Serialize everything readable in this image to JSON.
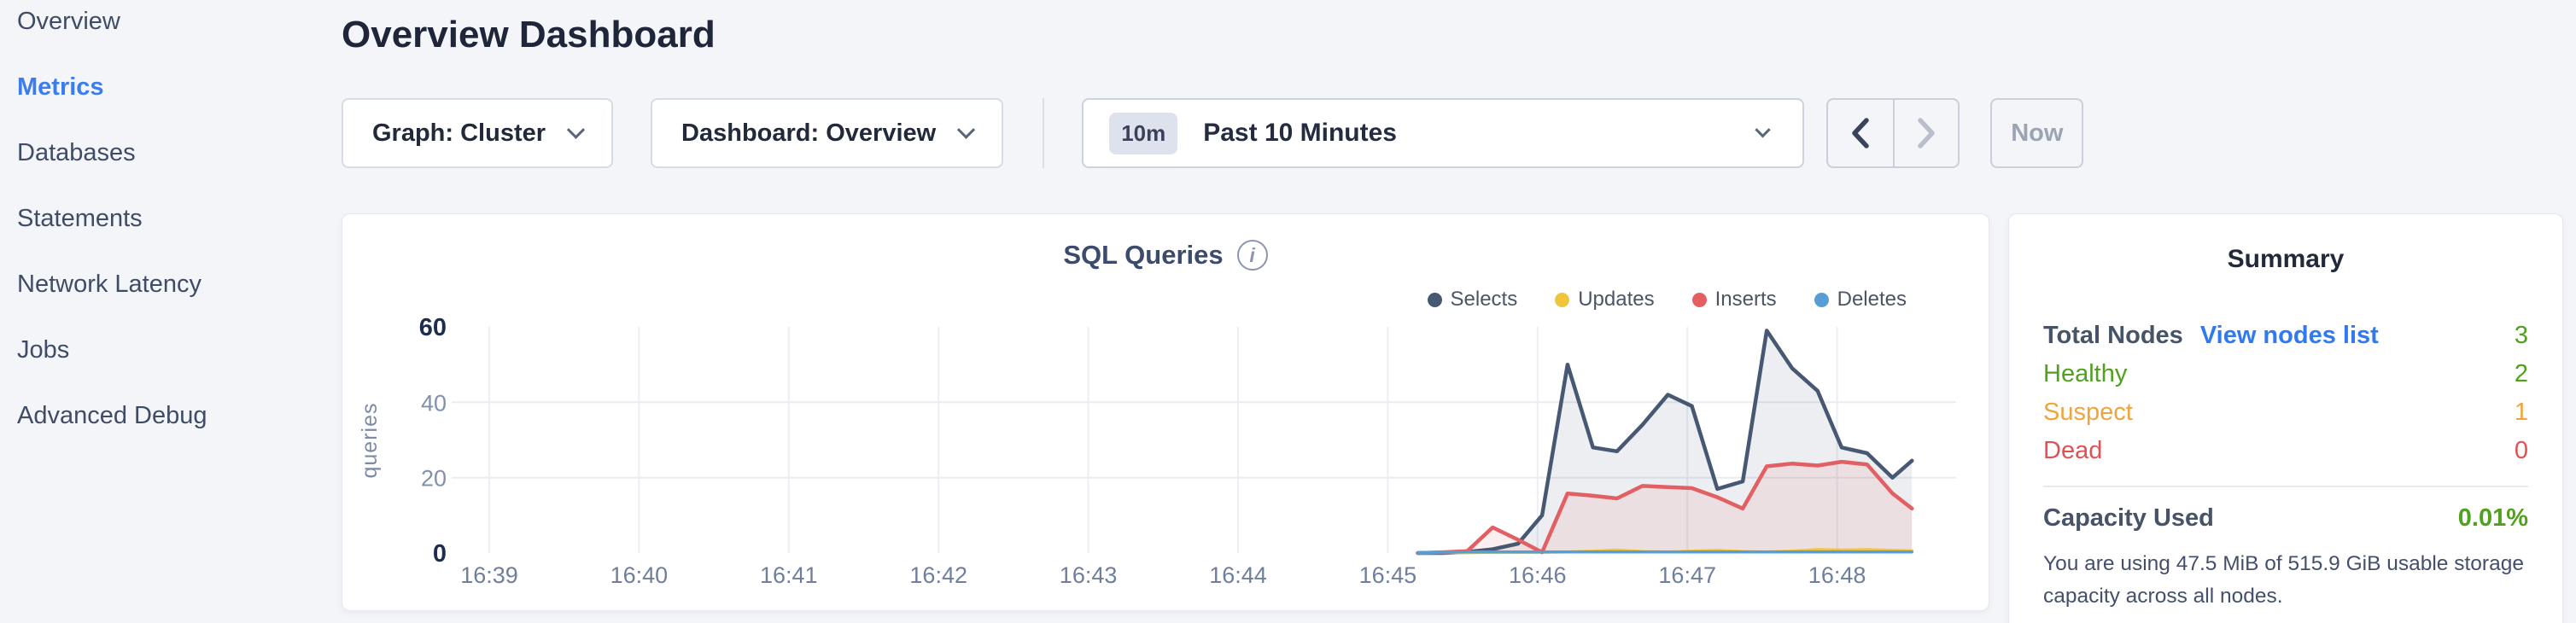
{
  "sidebar": {
    "items": [
      {
        "label": "Overview",
        "active": false
      },
      {
        "label": "Metrics",
        "active": true
      },
      {
        "label": "Databases",
        "active": false
      },
      {
        "label": "Statements",
        "active": false
      },
      {
        "label": "Network Latency",
        "active": false
      },
      {
        "label": "Jobs",
        "active": false
      },
      {
        "label": "Advanced Debug",
        "active": false
      }
    ]
  },
  "header": {
    "title": "Overview Dashboard"
  },
  "controls": {
    "graph_dropdown_label": "Graph: Cluster",
    "dashboard_dropdown_label": "Dashboard: Overview",
    "time_window_badge": "10m",
    "time_window_label": "Past 10 Minutes",
    "now_button_label": "Now"
  },
  "colors": {
    "active_nav_blue": "#3b7cf0",
    "link_blue": "#2f7af0",
    "healthy_green": "#4fa11e",
    "suspect_orange": "#f0a43b",
    "dead_red": "#e05253",
    "page_background": "#f4f5f9"
  },
  "chart_data": {
    "type": "area",
    "title": "SQL Queries",
    "ylabel": "queries",
    "ylim": [
      0,
      60
    ],
    "y_ticks": [
      0,
      20,
      40,
      60
    ],
    "y_gridlines": [
      20,
      40
    ],
    "x_tick_labels": [
      "16:39",
      "16:40",
      "16:41",
      "16:42",
      "16:43",
      "16:44",
      "16:45",
      "16:46",
      "16:47",
      "16:48"
    ],
    "x_unit": "minutes after 16:39, data sampled every 10s from ~16:45:12 to ~16:48:30",
    "legend_position": "top-right",
    "grid": true,
    "series": [
      {
        "name": "Selects",
        "color": "#475872",
        "fill": "rgba(71,88,114,0.10)",
        "width": 4.5,
        "points": [
          [
            6.2,
            0
          ],
          [
            6.37,
            0
          ],
          [
            6.53,
            0.3
          ],
          [
            6.7,
            1
          ],
          [
            6.87,
            2.5
          ],
          [
            7.03,
            10
          ],
          [
            7.2,
            50
          ],
          [
            7.37,
            28
          ],
          [
            7.53,
            27
          ],
          [
            7.7,
            34
          ],
          [
            7.87,
            42
          ],
          [
            8.03,
            39
          ],
          [
            8.2,
            17
          ],
          [
            8.37,
            19
          ],
          [
            8.53,
            59
          ],
          [
            8.7,
            49
          ],
          [
            8.87,
            43
          ],
          [
            9.03,
            28
          ],
          [
            9.2,
            26.5
          ],
          [
            9.37,
            20
          ],
          [
            9.5,
            24.5
          ]
        ]
      },
      {
        "name": "Updates",
        "color": "#f0c53c",
        "fill": "rgba(240,197,60,0.10)",
        "width": 3.5,
        "points": [
          [
            6.2,
            0
          ],
          [
            6.37,
            0.1
          ],
          [
            6.53,
            0.1
          ],
          [
            6.7,
            0.2
          ],
          [
            6.87,
            0.2
          ],
          [
            7.03,
            0.2
          ],
          [
            7.2,
            0.3
          ],
          [
            7.37,
            0.5
          ],
          [
            7.53,
            0.8
          ],
          [
            7.7,
            0.4
          ],
          [
            7.87,
            0.3
          ],
          [
            8.03,
            0.5
          ],
          [
            8.2,
            0.7
          ],
          [
            8.37,
            0.4
          ],
          [
            8.53,
            0.3
          ],
          [
            8.7,
            0.5
          ],
          [
            8.87,
            0.9
          ],
          [
            9.03,
            0.8
          ],
          [
            9.2,
            0.9
          ],
          [
            9.37,
            0.7
          ],
          [
            9.5,
            0.6
          ]
        ]
      },
      {
        "name": "Inserts",
        "color": "#e25f63",
        "fill": "rgba(226,95,99,0.10)",
        "width": 4.5,
        "points": [
          [
            6.2,
            0
          ],
          [
            6.37,
            0.2
          ],
          [
            6.53,
            0.5
          ],
          [
            6.7,
            6.8
          ],
          [
            6.87,
            3.5
          ],
          [
            7.03,
            0.2
          ],
          [
            7.2,
            15.8
          ],
          [
            7.37,
            15.2
          ],
          [
            7.53,
            14.5
          ],
          [
            7.7,
            17.8
          ],
          [
            7.87,
            17.5
          ],
          [
            8.03,
            17.2
          ],
          [
            8.2,
            14.8
          ],
          [
            8.37,
            11.8
          ],
          [
            8.53,
            23
          ],
          [
            8.7,
            23.7
          ],
          [
            8.87,
            23.2
          ],
          [
            9.03,
            24.2
          ],
          [
            9.2,
            23.5
          ],
          [
            9.37,
            15.8
          ],
          [
            9.5,
            11.8
          ]
        ]
      },
      {
        "name": "Deletes",
        "color": "#569fd6",
        "fill": "rgba(86,159,214,0.08)",
        "width": 3.5,
        "points": [
          [
            6.2,
            0.1
          ],
          [
            6.37,
            0.25
          ],
          [
            6.53,
            0.3
          ],
          [
            7.0,
            0.3
          ],
          [
            7.5,
            0.3
          ],
          [
            8.0,
            0.3
          ],
          [
            8.5,
            0.3
          ],
          [
            9.0,
            0.3
          ],
          [
            9.5,
            0.3
          ]
        ]
      }
    ]
  },
  "summary": {
    "title": "Summary",
    "total_nodes": {
      "label": "Total Nodes",
      "link": "View nodes list",
      "value": "3"
    },
    "node_statuses": [
      {
        "label": "Healthy",
        "value": "2"
      },
      {
        "label": "Suspect",
        "value": "1"
      },
      {
        "label": "Dead",
        "value": "0"
      }
    ],
    "capacity": {
      "label": "Capacity Used",
      "value": "0.01%",
      "description": "You are using 47.5 MiB of 515.9 GiB usable storage capacity across all nodes."
    }
  }
}
